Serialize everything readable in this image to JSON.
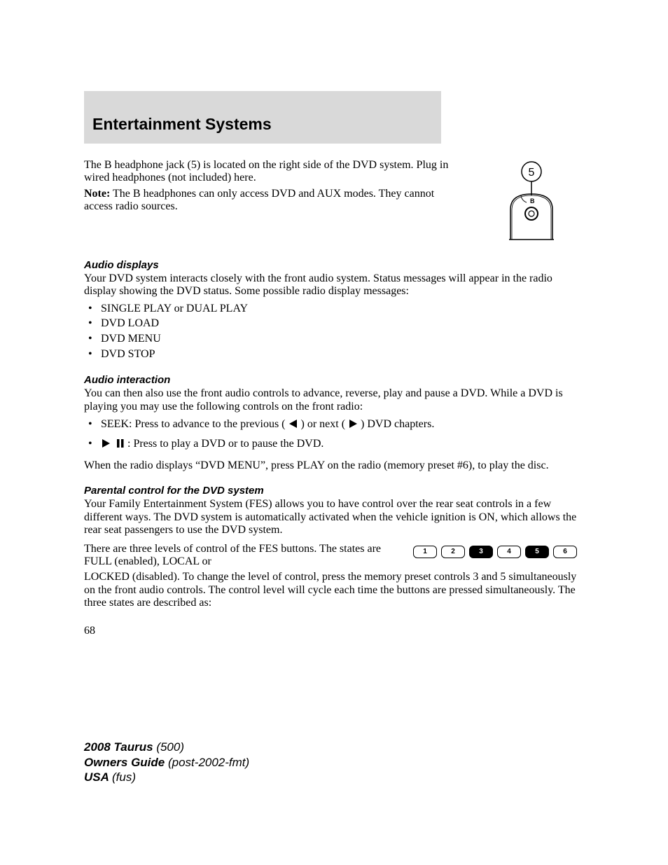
{
  "header": {
    "title": "Entertainment Systems"
  },
  "jack": {
    "p1": "The B headphone jack (5) is located on the right side of the DVD system. Plug in wired headphones (not included) here.",
    "note_label": "Note:",
    "note_body": " The B headphones can only access DVD and AUX modes. They cannot access radio sources.",
    "callout": "5",
    "jack_label": "B"
  },
  "audio_displays": {
    "heading": "Audio displays",
    "intro": "Your DVD system interacts closely with the front audio system. Status messages will appear in the radio display showing the DVD status. Some possible radio display messages:",
    "items": [
      "SINGLE PLAY or DUAL PLAY",
      "DVD LOAD",
      "DVD MENU",
      "DVD STOP"
    ]
  },
  "audio_interaction": {
    "heading": "Audio interaction",
    "intro": "You can then also use the front audio controls to advance, reverse, play and pause a DVD. While a DVD is playing you may use the following controls on the front radio:",
    "seek_pre": "SEEK: Press to advance to the previous (",
    "seek_mid": ") or next (",
    "seek_post": ") DVD chapters.",
    "play_post": " : Press to play a DVD or to pause the DVD.",
    "after": "When the radio displays “DVD MENU”, press PLAY on the radio (memory preset #6), to play the disc."
  },
  "parental": {
    "heading": "Parental control for the DVD system",
    "p1": "Your Family Entertainment System (FES) allows you to have control over the rear seat controls in a few different ways. The DVD system is automatically activated when the vehicle ignition is ON, which allows the rear seat passengers to use the DVD system.",
    "p2_left": "There are three levels of control of the FES buttons. The states are FULL (enabled), LOCAL or",
    "p2_cont": "LOCKED (disabled). To change the level of control, press the memory preset controls 3 and 5 simultaneously on the front audio controls. The control level will cycle each time the buttons are pressed simultaneously. The three states are described as:",
    "presets": [
      {
        "n": "1",
        "filled": false
      },
      {
        "n": "2",
        "filled": false
      },
      {
        "n": "3",
        "filled": true
      },
      {
        "n": "4",
        "filled": false
      },
      {
        "n": "5",
        "filled": true
      },
      {
        "n": "6",
        "filled": false
      }
    ]
  },
  "page_number": "68",
  "footer": {
    "l1a": "2008 Taurus ",
    "l1b": "(500)",
    "l2a": "Owners Guide ",
    "l2b": "(post-2002-fmt)",
    "l3a": "USA ",
    "l3b": "(fus)"
  },
  "style": {
    "icon_fill": "#000000",
    "preset_border": "#000000",
    "header_bg": "#d9d9d9"
  }
}
